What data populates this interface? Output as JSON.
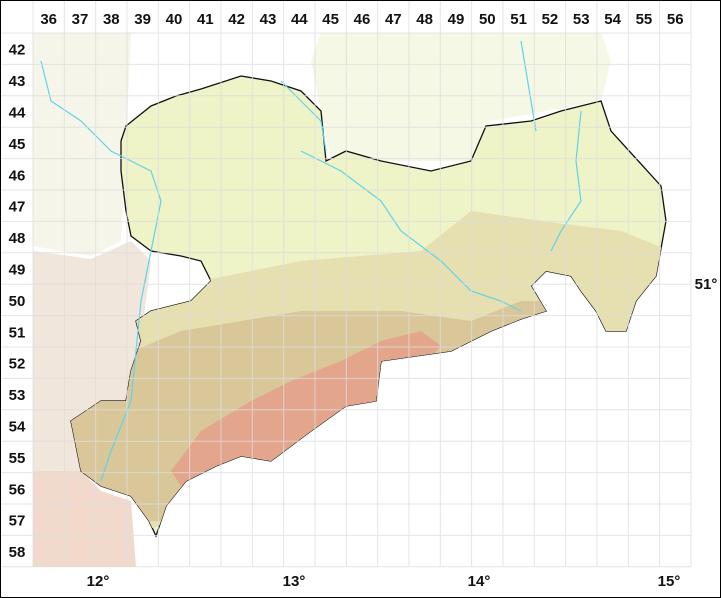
{
  "map": {
    "column_labels": [
      "36",
      "37",
      "38",
      "39",
      "40",
      "41",
      "42",
      "43",
      "44",
      "45",
      "46",
      "47",
      "48",
      "49",
      "50",
      "51",
      "52",
      "53",
      "54",
      "55",
      "56"
    ],
    "row_labels": [
      "42",
      "43",
      "44",
      "45",
      "46",
      "47",
      "48",
      "49",
      "50",
      "51",
      "52",
      "53",
      "54",
      "55",
      "56",
      "57",
      "58"
    ],
    "longitude_labels": [
      "12°",
      "13°",
      "14°",
      "15°"
    ],
    "latitude_labels": [
      "51°"
    ],
    "colors": {
      "surroundings": "#f4f8e4",
      "lowland": "#eef3c8",
      "hills": "#e6dfb0",
      "uplands": "#d9c79a",
      "mountains": "#e3a58c",
      "rivers": "#5fd3e8",
      "border": "#111111",
      "grid": "#e0e0e0"
    }
  }
}
